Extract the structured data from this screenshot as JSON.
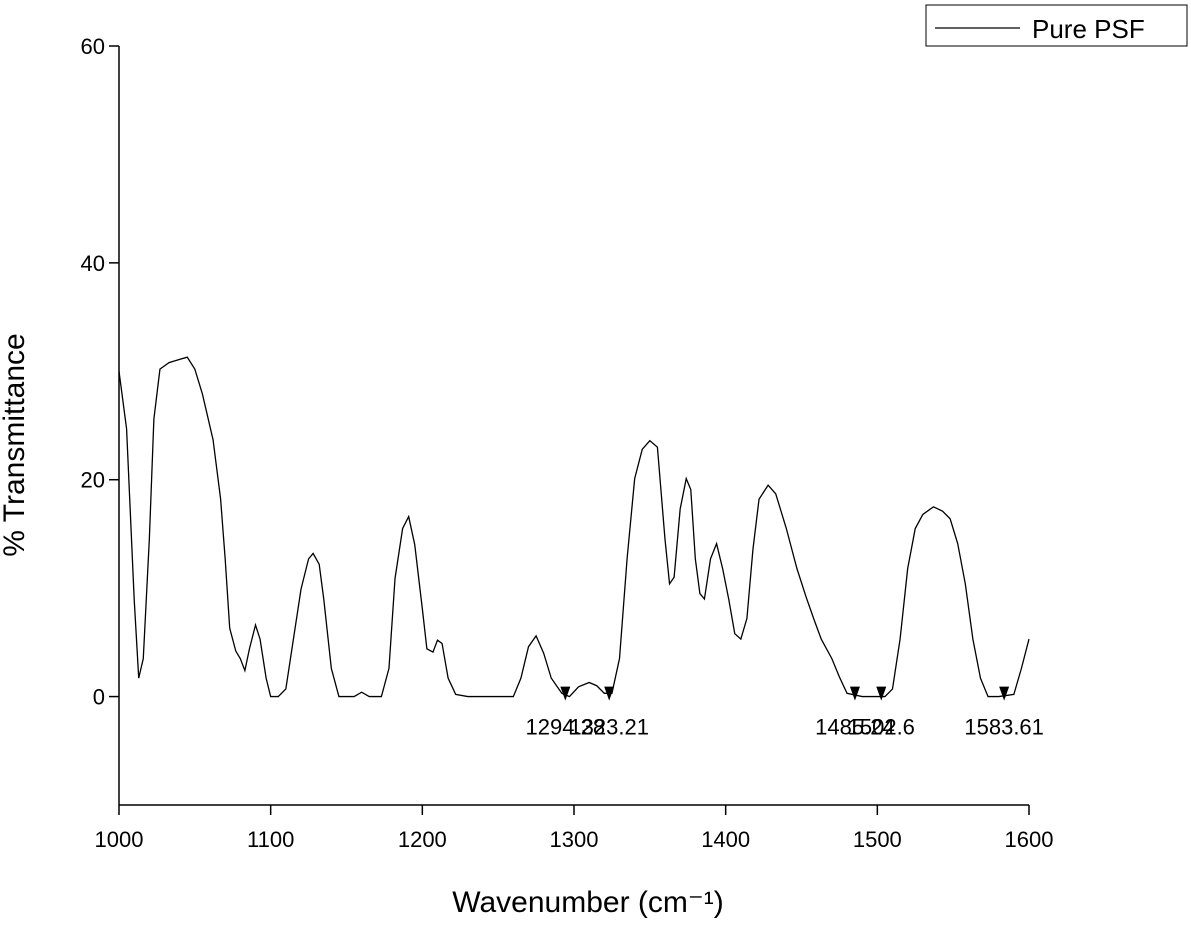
{
  "chart_data": {
    "type": "line",
    "xlabel": "Wavenumber (cm⁻¹)",
    "ylabel": "% Transmittance",
    "xlim": [
      1000,
      1600
    ],
    "xticks": [
      1000,
      1100,
      1200,
      1300,
      1400,
      1500,
      1600
    ],
    "ylim": [
      -10,
      60
    ],
    "yticks": [
      0,
      20,
      40,
      60
    ],
    "legend_position": "top-right",
    "series": [
      {
        "name": "Pure PSF",
        "color": "#000000",
        "x": [
          1000,
          1005,
          1010,
          1013,
          1016,
          1020,
          1023,
          1027,
          1033,
          1040,
          1045,
          1050,
          1055,
          1062,
          1067,
          1070,
          1073,
          1077,
          1080,
          1083,
          1086,
          1090,
          1093,
          1097,
          1100,
          1105,
          1110,
          1115,
          1120,
          1125,
          1128,
          1132,
          1135,
          1140,
          1145,
          1155,
          1160,
          1165,
          1173,
          1178,
          1182,
          1187,
          1191,
          1195,
          1200,
          1203,
          1207,
          1210,
          1213,
          1217,
          1222,
          1230,
          1260,
          1265,
          1270,
          1275,
          1280,
          1285,
          1292,
          1297,
          1303,
          1310,
          1315,
          1320,
          1325,
          1330,
          1335,
          1340,
          1345,
          1350,
          1355,
          1360,
          1363,
          1366,
          1370,
          1374,
          1377,
          1380,
          1383,
          1386,
          1390,
          1394,
          1398,
          1402,
          1406,
          1410,
          1414,
          1418,
          1422,
          1428,
          1433,
          1440,
          1447,
          1453,
          1458,
          1463,
          1470,
          1475,
          1480,
          1490,
          1505,
          1510,
          1515,
          1520,
          1525,
          1530,
          1537,
          1543,
          1548,
          1553,
          1558,
          1563,
          1568,
          1573,
          1580,
          1590,
          1595,
          1600
        ],
        "values": [
          30,
          24.7,
          9,
          1.7,
          3.5,
          14.5,
          25.6,
          30.2,
          30.8,
          31.1,
          31.3,
          30.2,
          27.9,
          23.7,
          18.2,
          12.7,
          6.3,
          4.2,
          3.5,
          2.4,
          4.4,
          6.6,
          5.3,
          1.7,
          0,
          0,
          0.7,
          5.3,
          9.9,
          12.7,
          13.2,
          12.2,
          9,
          2.6,
          0,
          0,
          0.4,
          0,
          0,
          2.6,
          10.9,
          15.5,
          16.6,
          14,
          8.1,
          4.4,
          4.1,
          5.2,
          4.9,
          1.7,
          0.2,
          0,
          0,
          1.7,
          4.6,
          5.6,
          4,
          1.7,
          0.3,
          0,
          0.9,
          1.3,
          1,
          0.3,
          0.3,
          3.5,
          12.7,
          20.1,
          22.8,
          23.6,
          23,
          14.5,
          10.4,
          11,
          17.3,
          20.1,
          19.1,
          12.7,
          9.5,
          9,
          12.7,
          14.1,
          11.8,
          9,
          5.8,
          5.3,
          7.2,
          13.6,
          18.2,
          19.5,
          18.7,
          15.5,
          11.8,
          9.2,
          7.2,
          5.3,
          3.5,
          1.8,
          0.3,
          0,
          0,
          0.7,
          5.3,
          11.8,
          15.5,
          16.8,
          17.5,
          17.1,
          16.4,
          14.1,
          10.4,
          5.3,
          1.7,
          0,
          0,
          0.2,
          2.6,
          5.3
        ]
      }
    ],
    "peaks": [
      {
        "x": 1294.28,
        "y": 0
      },
      {
        "x": 1323.21,
        "y": 0
      },
      {
        "x": 1485.24,
        "y": 0
      },
      {
        "x": 1502.6,
        "y": 0
      },
      {
        "x": 1583.61,
        "y": 0
      }
    ]
  }
}
